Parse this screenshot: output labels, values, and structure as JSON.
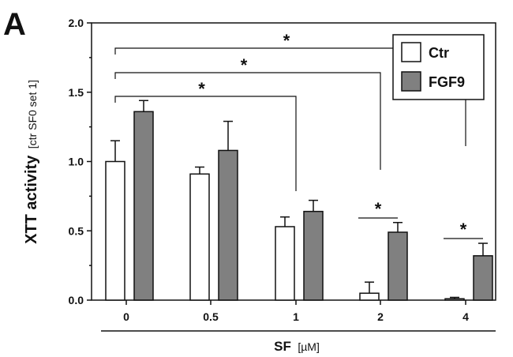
{
  "panel_label": "A",
  "chart_data": {
    "type": "bar",
    "title": "",
    "xlabel": "SF",
    "xlabel_unit": "[µM]",
    "ylabel": "XTT activity",
    "ylabel_unit": "[ctr SF0 set 1]",
    "categories": [
      "0",
      "0.5",
      "1",
      "2",
      "4"
    ],
    "ylim": [
      0,
      2.0
    ],
    "yticks": [
      "0.0",
      "0.5",
      "1.0",
      "1.5",
      "2.0"
    ],
    "series": [
      {
        "name": "Ctr",
        "color": "#ffffff",
        "values": [
          1.0,
          0.91,
          0.53,
          0.05,
          0.01
        ],
        "errors": [
          0.15,
          0.05,
          0.07,
          0.08,
          0.01
        ]
      },
      {
        "name": "FGF9",
        "color": "#808080",
        "values": [
          1.36,
          1.08,
          0.64,
          0.49,
          0.32
        ],
        "errors": [
          0.08,
          0.21,
          0.08,
          0.07,
          0.09
        ]
      }
    ],
    "legend_position": "top-right",
    "grid": false,
    "significance_marker": "*",
    "significance": [
      {
        "from": "0",
        "to": "4",
        "label": "*"
      },
      {
        "from": "0",
        "to": "2",
        "label": "*"
      },
      {
        "from": "0",
        "to": "1",
        "label": "*"
      },
      {
        "within": "2",
        "label": "*"
      },
      {
        "within": "4",
        "label": "*"
      }
    ]
  }
}
